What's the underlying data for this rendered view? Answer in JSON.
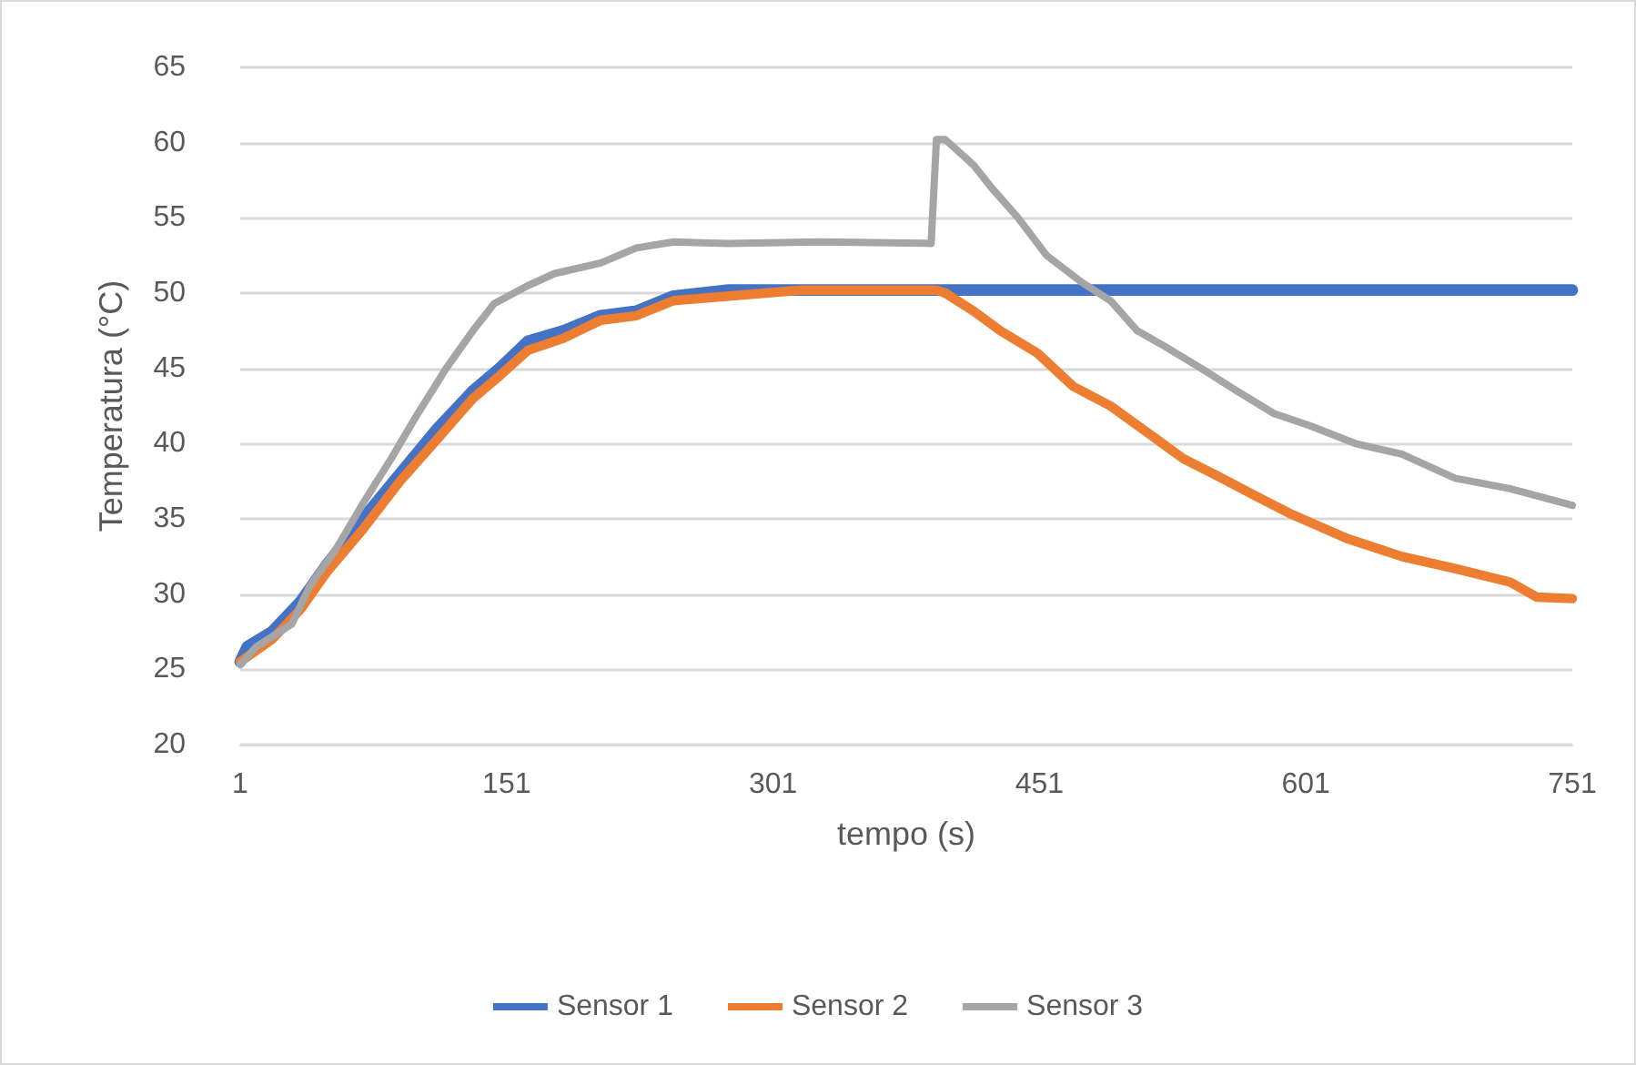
{
  "chart_data": {
    "type": "line",
    "xlabel": "tempo (s)",
    "ylabel": "Temperatura (°C)",
    "xlim": [
      1,
      751
    ],
    "xticks": [
      1,
      151,
      301,
      451,
      601,
      751
    ],
    "ylim": [
      20,
      65
    ],
    "yticks": [
      20,
      25,
      30,
      35,
      40,
      45,
      50,
      55,
      60,
      65
    ],
    "grid": "y",
    "legend": "bottom",
    "marker": "none",
    "line_style": "solid",
    "series": [
      {
        "name": "Sensor 1",
        "color": "#4472c4",
        "x": [
          1,
          5,
          19,
          35,
          50,
          70,
          91,
          112,
          132,
          147,
          163,
          183,
          204,
          224,
          245,
          276,
          400,
          500,
          600,
          700,
          751
        ],
        "values": [
          25.5,
          26.5,
          27.5,
          29.5,
          32,
          35,
          38,
          41,
          43.5,
          45,
          46.8,
          47.5,
          48.5,
          48.8,
          49.8,
          50.2,
          50.2,
          50.2,
          50.2,
          50.2,
          50.2
        ]
      },
      {
        "name": "Sensor 2",
        "color": "#ed7d31",
        "x": [
          1,
          19,
          35,
          50,
          70,
          91,
          112,
          132,
          147,
          163,
          183,
          204,
          224,
          245,
          276,
          317,
          393,
          398,
          414,
          429,
          450,
          470,
          491,
          511,
          532,
          552,
          573,
          593,
          624,
          655,
          685,
          716,
          731,
          751
        ],
        "values": [
          25.5,
          27,
          29,
          31.5,
          34.3,
          37.5,
          40.3,
          43,
          44.5,
          46.2,
          47,
          48.2,
          48.5,
          49.5,
          49.8,
          50.2,
          50.2,
          50,
          48.8,
          47.5,
          46,
          43.8,
          42.5,
          40.8,
          39,
          37.8,
          36.5,
          35.3,
          33.7,
          32.5,
          31.7,
          30.8,
          29.8,
          29.7
        ]
      },
      {
        "name": "Sensor 3",
        "color": "#a5a5a5",
        "x": [
          1,
          10,
          30,
          40,
          55,
          70,
          86,
          101,
          117,
          132,
          144,
          163,
          178,
          204,
          224,
          245,
          276,
          327,
          390,
          393,
          398,
          414,
          424,
          439,
          455,
          475,
          491,
          506,
          521,
          542,
          562,
          583,
          603,
          629,
          655,
          685,
          716,
          751
        ],
        "values": [
          25.3,
          26.5,
          28,
          30.5,
          33,
          36,
          39,
          42,
          45,
          47.5,
          49.3,
          50.5,
          51.3,
          52,
          53,
          53.4,
          53.3,
          53.4,
          53.3,
          60.2,
          60.2,
          58.5,
          57,
          55,
          52.5,
          50.7,
          49.5,
          47.5,
          46.5,
          45,
          43.5,
          42,
          41.2,
          40,
          39.3,
          37.7,
          37,
          35.9
        ]
      }
    ]
  }
}
